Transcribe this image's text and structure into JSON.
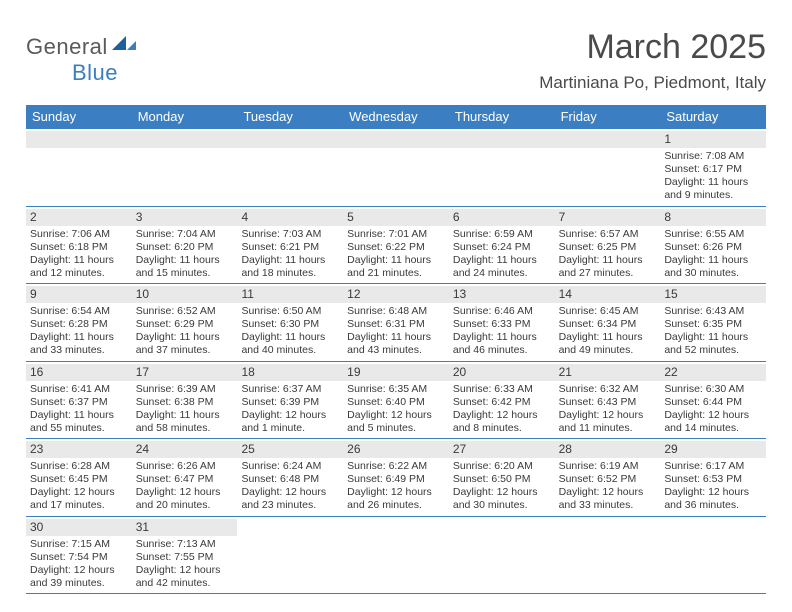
{
  "logo": {
    "text1": "General",
    "text2": "Blue"
  },
  "title": "March 2025",
  "location": "Martiniana Po, Piedmont, Italy",
  "day_header_bg": "#3b7fc2",
  "day_header_color": "#ffffff",
  "daynum_bg": "#e9e9e9",
  "border_color": "#3b7fc2",
  "text_color": "#3a3a3a",
  "day_names": [
    "Sunday",
    "Monday",
    "Tuesday",
    "Wednesday",
    "Thursday",
    "Friday",
    "Saturday"
  ],
  "weeks": [
    [
      null,
      null,
      null,
      null,
      null,
      null,
      {
        "n": "1",
        "sr": "7:08 AM",
        "ss": "6:17 PM",
        "dl": "11 hours and 9 minutes."
      }
    ],
    [
      {
        "n": "2",
        "sr": "7:06 AM",
        "ss": "6:18 PM",
        "dl": "11 hours and 12 minutes."
      },
      {
        "n": "3",
        "sr": "7:04 AM",
        "ss": "6:20 PM",
        "dl": "11 hours and 15 minutes."
      },
      {
        "n": "4",
        "sr": "7:03 AM",
        "ss": "6:21 PM",
        "dl": "11 hours and 18 minutes."
      },
      {
        "n": "5",
        "sr": "7:01 AM",
        "ss": "6:22 PM",
        "dl": "11 hours and 21 minutes."
      },
      {
        "n": "6",
        "sr": "6:59 AM",
        "ss": "6:24 PM",
        "dl": "11 hours and 24 minutes."
      },
      {
        "n": "7",
        "sr": "6:57 AM",
        "ss": "6:25 PM",
        "dl": "11 hours and 27 minutes."
      },
      {
        "n": "8",
        "sr": "6:55 AM",
        "ss": "6:26 PM",
        "dl": "11 hours and 30 minutes."
      }
    ],
    [
      {
        "n": "9",
        "sr": "6:54 AM",
        "ss": "6:28 PM",
        "dl": "11 hours and 33 minutes."
      },
      {
        "n": "10",
        "sr": "6:52 AM",
        "ss": "6:29 PM",
        "dl": "11 hours and 37 minutes."
      },
      {
        "n": "11",
        "sr": "6:50 AM",
        "ss": "6:30 PM",
        "dl": "11 hours and 40 minutes."
      },
      {
        "n": "12",
        "sr": "6:48 AM",
        "ss": "6:31 PM",
        "dl": "11 hours and 43 minutes."
      },
      {
        "n": "13",
        "sr": "6:46 AM",
        "ss": "6:33 PM",
        "dl": "11 hours and 46 minutes."
      },
      {
        "n": "14",
        "sr": "6:45 AM",
        "ss": "6:34 PM",
        "dl": "11 hours and 49 minutes."
      },
      {
        "n": "15",
        "sr": "6:43 AM",
        "ss": "6:35 PM",
        "dl": "11 hours and 52 minutes."
      }
    ],
    [
      {
        "n": "16",
        "sr": "6:41 AM",
        "ss": "6:37 PM",
        "dl": "11 hours and 55 minutes."
      },
      {
        "n": "17",
        "sr": "6:39 AM",
        "ss": "6:38 PM",
        "dl": "11 hours and 58 minutes."
      },
      {
        "n": "18",
        "sr": "6:37 AM",
        "ss": "6:39 PM",
        "dl": "12 hours and 1 minute."
      },
      {
        "n": "19",
        "sr": "6:35 AM",
        "ss": "6:40 PM",
        "dl": "12 hours and 5 minutes."
      },
      {
        "n": "20",
        "sr": "6:33 AM",
        "ss": "6:42 PM",
        "dl": "12 hours and 8 minutes."
      },
      {
        "n": "21",
        "sr": "6:32 AM",
        "ss": "6:43 PM",
        "dl": "12 hours and 11 minutes."
      },
      {
        "n": "22",
        "sr": "6:30 AM",
        "ss": "6:44 PM",
        "dl": "12 hours and 14 minutes."
      }
    ],
    [
      {
        "n": "23",
        "sr": "6:28 AM",
        "ss": "6:45 PM",
        "dl": "12 hours and 17 minutes."
      },
      {
        "n": "24",
        "sr": "6:26 AM",
        "ss": "6:47 PM",
        "dl": "12 hours and 20 minutes."
      },
      {
        "n": "25",
        "sr": "6:24 AM",
        "ss": "6:48 PM",
        "dl": "12 hours and 23 minutes."
      },
      {
        "n": "26",
        "sr": "6:22 AM",
        "ss": "6:49 PM",
        "dl": "12 hours and 26 minutes."
      },
      {
        "n": "27",
        "sr": "6:20 AM",
        "ss": "6:50 PM",
        "dl": "12 hours and 30 minutes."
      },
      {
        "n": "28",
        "sr": "6:19 AM",
        "ss": "6:52 PM",
        "dl": "12 hours and 33 minutes."
      },
      {
        "n": "29",
        "sr": "6:17 AM",
        "ss": "6:53 PM",
        "dl": "12 hours and 36 minutes."
      }
    ],
    [
      {
        "n": "30",
        "sr": "7:15 AM",
        "ss": "7:54 PM",
        "dl": "12 hours and 39 minutes."
      },
      {
        "n": "31",
        "sr": "7:13 AM",
        "ss": "7:55 PM",
        "dl": "12 hours and 42 minutes."
      },
      null,
      null,
      null,
      null,
      null
    ]
  ],
  "labels": {
    "sunrise": "Sunrise: ",
    "sunset": "Sunset: ",
    "daylight": "Daylight: "
  }
}
